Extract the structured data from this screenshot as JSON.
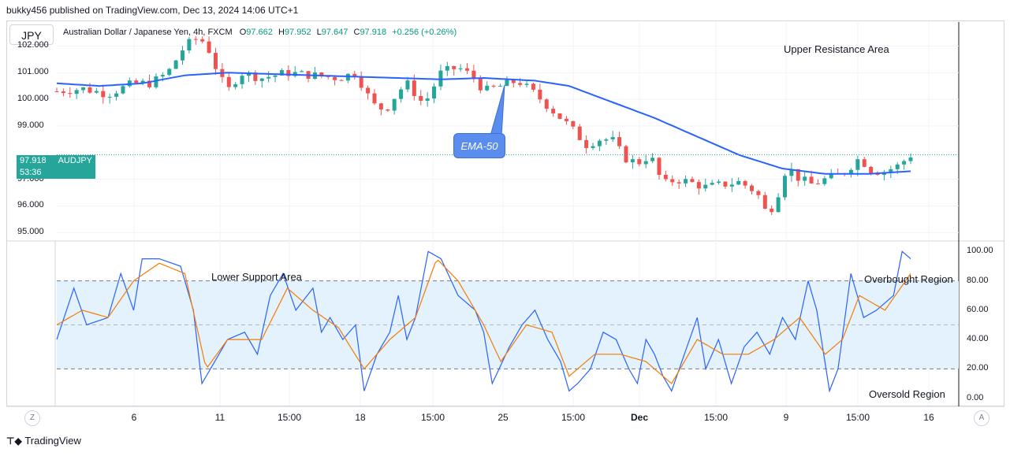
{
  "header": {
    "publisher_line": "bukky456 published on TradingView.com, Dec 13, 2024 14:06 UTC+1"
  },
  "symbol_badge": "JPY",
  "info": {
    "title": "Australian Dollar / Japanese Yen, 4h, FXCM",
    "open_label": "O",
    "open": "97.662",
    "high_label": "H",
    "high": "97.952",
    "low_label": "L",
    "low": "97.647",
    "close_label": "C",
    "close": "97.918",
    "change": "+0.256 (+0.26%)"
  },
  "price_tag": {
    "price": "97.918",
    "countdown": "53:36",
    "symbol": "AUDJPY"
  },
  "annotations": {
    "upper_resistance": "Upper Resistance Area",
    "lower_support": "Lower Support Area",
    "overbought": "Overbought Region",
    "oversold": "Oversold Region",
    "ema": "EMA-50"
  },
  "nav": {
    "left_button": "Z",
    "right_button": "A"
  },
  "footer": {
    "brand": "TradingView"
  },
  "colors": {
    "up": "#26a69a",
    "down": "#ef5350",
    "ema": "#2962ff",
    "k_line": "#2962ff",
    "d_line": "#f57c00",
    "band": "#e3f2fd"
  },
  "chart_data": [
    {
      "type": "candlestick",
      "symbol": "AUDJPY",
      "timeframe": "4h",
      "ylabel": "JPY",
      "y_ticks": [
        "102.000",
        "101.000",
        "100.000",
        "99.000",
        "97.000",
        "96.000",
        "95.000"
      ],
      "ylim": [
        94.8,
        102.9
      ],
      "x_ticks": [
        "6",
        "11",
        "15:00",
        "18",
        "15:00",
        "25",
        "15:00",
        "Dec",
        "15:00",
        "9",
        "15:00",
        "16"
      ],
      "last_price": 97.918,
      "close_path": [
        [
          0,
          100.3
        ],
        [
          0.03,
          100.4
        ],
        [
          0.06,
          100.2
        ],
        [
          0.09,
          100.6
        ],
        [
          0.11,
          100.6
        ],
        [
          0.13,
          101.0
        ],
        [
          0.15,
          102.0
        ],
        [
          0.165,
          102.3
        ],
        [
          0.175,
          102.1
        ],
        [
          0.19,
          100.9
        ],
        [
          0.2,
          100.3
        ],
        [
          0.215,
          101.0
        ],
        [
          0.24,
          100.8
        ],
        [
          0.27,
          101.0
        ],
        [
          0.3,
          100.9
        ],
        [
          0.33,
          100.8
        ],
        [
          0.35,
          101.0
        ],
        [
          0.37,
          99.8
        ],
        [
          0.385,
          99.6
        ],
        [
          0.4,
          100.3
        ],
        [
          0.41,
          100.6
        ],
        [
          0.43,
          99.8
        ],
        [
          0.45,
          101.0
        ],
        [
          0.47,
          101.2
        ],
        [
          0.49,
          100.8
        ],
        [
          0.5,
          100.3
        ],
        [
          0.52,
          100.5
        ],
        [
          0.54,
          100.7
        ],
        [
          0.56,
          100.2
        ],
        [
          0.58,
          99.6
        ],
        [
          0.6,
          99.0
        ],
        [
          0.62,
          98.3
        ],
        [
          0.635,
          98.5
        ],
        [
          0.65,
          98.5
        ],
        [
          0.665,
          97.8
        ],
        [
          0.68,
          97.6
        ],
        [
          0.695,
          97.9
        ],
        [
          0.71,
          96.8
        ],
        [
          0.725,
          97.0
        ],
        [
          0.74,
          96.9
        ],
        [
          0.76,
          96.7
        ],
        [
          0.78,
          96.8
        ],
        [
          0.8,
          96.9
        ],
        [
          0.82,
          96.5
        ],
        [
          0.83,
          95.8
        ],
        [
          0.84,
          96.0
        ],
        [
          0.855,
          97.5
        ],
        [
          0.87,
          97.0
        ],
        [
          0.885,
          96.8
        ],
        [
          0.9,
          97.0
        ],
        [
          0.92,
          97.2
        ],
        [
          0.94,
          97.8
        ],
        [
          0.955,
          97.3
        ],
        [
          0.97,
          97.3
        ],
        [
          0.985,
          97.5
        ],
        [
          1.0,
          97.9
        ]
      ],
      "ema_50": [
        [
          0,
          100.6
        ],
        [
          0.05,
          100.5
        ],
        [
          0.1,
          100.6
        ],
        [
          0.15,
          100.9
        ],
        [
          0.2,
          101.0
        ],
        [
          0.3,
          100.9
        ],
        [
          0.4,
          100.8
        ],
        [
          0.45,
          100.75
        ],
        [
          0.5,
          100.8
        ],
        [
          0.56,
          100.7
        ],
        [
          0.6,
          100.5
        ],
        [
          0.65,
          99.9
        ],
        [
          0.7,
          99.3
        ],
        [
          0.75,
          98.6
        ],
        [
          0.8,
          97.9
        ],
        [
          0.85,
          97.4
        ],
        [
          0.9,
          97.2
        ],
        [
          0.95,
          97.2
        ],
        [
          1.0,
          97.3
        ]
      ]
    },
    {
      "type": "line",
      "name": "Stochastic",
      "ylim": [
        -5,
        105
      ],
      "y_ticks": [
        "100.00",
        "80.00",
        "60.00",
        "40.00",
        "20.00",
        "0.00"
      ],
      "band": [
        20,
        80
      ],
      "midline": 50,
      "k_path": [
        [
          0,
          40
        ],
        [
          0.02,
          75
        ],
        [
          0.035,
          50
        ],
        [
          0.06,
          55
        ],
        [
          0.075,
          85
        ],
        [
          0.09,
          60
        ],
        [
          0.1,
          95
        ],
        [
          0.12,
          95
        ],
        [
          0.145,
          90
        ],
        [
          0.16,
          60
        ],
        [
          0.17,
          10
        ],
        [
          0.18,
          20
        ],
        [
          0.2,
          40
        ],
        [
          0.22,
          45
        ],
        [
          0.235,
          30
        ],
        [
          0.25,
          70
        ],
        [
          0.265,
          85
        ],
        [
          0.28,
          60
        ],
        [
          0.3,
          75
        ],
        [
          0.31,
          45
        ],
        [
          0.32,
          55
        ],
        [
          0.335,
          40
        ],
        [
          0.35,
          50
        ],
        [
          0.36,
          5
        ],
        [
          0.375,
          30
        ],
        [
          0.39,
          45
        ],
        [
          0.4,
          70
        ],
        [
          0.41,
          40
        ],
        [
          0.42,
          55
        ],
        [
          0.435,
          100
        ],
        [
          0.45,
          95
        ],
        [
          0.47,
          70
        ],
        [
          0.49,
          60
        ],
        [
          0.5,
          45
        ],
        [
          0.51,
          10
        ],
        [
          0.53,
          35
        ],
        [
          0.545,
          50
        ],
        [
          0.56,
          60
        ],
        [
          0.575,
          40
        ],
        [
          0.59,
          25
        ],
        [
          0.6,
          5
        ],
        [
          0.61,
          10
        ],
        [
          0.625,
          20
        ],
        [
          0.64,
          45
        ],
        [
          0.655,
          40
        ],
        [
          0.67,
          20
        ],
        [
          0.68,
          10
        ],
        [
          0.69,
          40
        ],
        [
          0.7,
          30
        ],
        [
          0.71,
          15
        ],
        [
          0.72,
          5
        ],
        [
          0.735,
          30
        ],
        [
          0.75,
          55
        ],
        [
          0.76,
          20
        ],
        [
          0.775,
          40
        ],
        [
          0.79,
          10
        ],
        [
          0.805,
          35
        ],
        [
          0.82,
          45
        ],
        [
          0.835,
          30
        ],
        [
          0.85,
          55
        ],
        [
          0.865,
          40
        ],
        [
          0.88,
          80
        ],
        [
          0.89,
          60
        ],
        [
          0.905,
          5
        ],
        [
          0.915,
          20
        ],
        [
          0.93,
          85
        ],
        [
          0.945,
          55
        ],
        [
          0.96,
          60
        ],
        [
          0.98,
          70
        ],
        [
          0.99,
          100
        ],
        [
          1.0,
          95
        ]
      ],
      "d_path": [
        [
          0,
          50
        ],
        [
          0.03,
          60
        ],
        [
          0.06,
          55
        ],
        [
          0.09,
          80
        ],
        [
          0.12,
          92
        ],
        [
          0.15,
          85
        ],
        [
          0.175,
          20
        ],
        [
          0.2,
          40
        ],
        [
          0.24,
          40
        ],
        [
          0.27,
          75
        ],
        [
          0.3,
          60
        ],
        [
          0.33,
          48
        ],
        [
          0.36,
          20
        ],
        [
          0.39,
          40
        ],
        [
          0.42,
          55
        ],
        [
          0.445,
          95
        ],
        [
          0.47,
          80
        ],
        [
          0.5,
          50
        ],
        [
          0.52,
          25
        ],
        [
          0.55,
          50
        ],
        [
          0.58,
          45
        ],
        [
          0.6,
          15
        ],
        [
          0.63,
          30
        ],
        [
          0.66,
          30
        ],
        [
          0.69,
          25
        ],
        [
          0.72,
          10
        ],
        [
          0.75,
          40
        ],
        [
          0.78,
          30
        ],
        [
          0.81,
          30
        ],
        [
          0.84,
          40
        ],
        [
          0.87,
          55
        ],
        [
          0.9,
          30
        ],
        [
          0.92,
          40
        ],
        [
          0.94,
          70
        ],
        [
          0.97,
          60
        ],
        [
          1.0,
          85
        ]
      ]
    }
  ]
}
